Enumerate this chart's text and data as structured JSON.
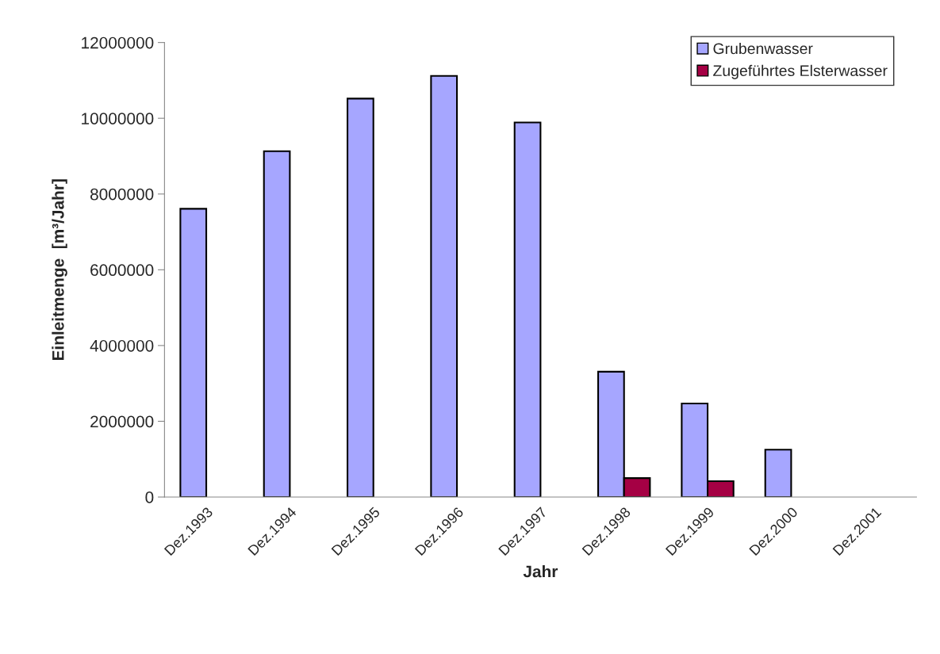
{
  "chart_data": {
    "type": "bar",
    "xlabel": "Jahr",
    "ylabel": "Einleitmenge  [m³/Jahr]",
    "categories": [
      "Dez.1993",
      "Dez.1994",
      "Dez.1995",
      "Dez.1996",
      "Dez.1997",
      "Dez.1998",
      "Dez.1999",
      "Dez.2000",
      "Dez.2001"
    ],
    "series": [
      {
        "name": "Grubenwasser",
        "color": "#a6a6ff",
        "values": [
          7610000,
          9130000,
          10520000,
          11120000,
          9890000,
          3310000,
          2470000,
          1250000,
          null
        ]
      },
      {
        "name": "Zugeführtes Elsterwasser",
        "color": "#a50044",
        "values": [
          null,
          null,
          null,
          null,
          null,
          500000,
          420000,
          null,
          null
        ]
      }
    ],
    "ylim": [
      0,
      12000000
    ],
    "yticks": [
      0,
      2000000,
      4000000,
      6000000,
      8000000,
      10000000,
      12000000
    ],
    "grid": false,
    "legend": "top right"
  }
}
